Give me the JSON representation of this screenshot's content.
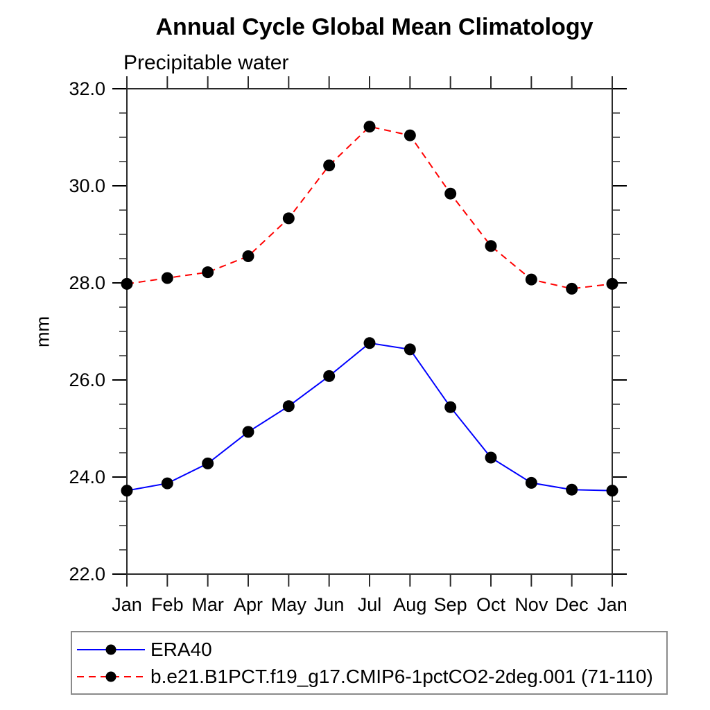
{
  "chart_data": {
    "type": "line",
    "title": "Annual Cycle Global Mean Climatology",
    "subtitle": "Precipitable water",
    "ylabel": "mm",
    "xlabel": "",
    "categories": [
      "Jan",
      "Feb",
      "Mar",
      "Apr",
      "May",
      "Jun",
      "Jul",
      "Aug",
      "Sep",
      "Oct",
      "Nov",
      "Dec",
      "Jan"
    ],
    "series": [
      {
        "name": "ERA40",
        "color": "#0000ff",
        "line_style": "solid",
        "marker": "filled-circle",
        "marker_color": "#000000",
        "values": [
          23.72,
          23.87,
          24.28,
          24.93,
          25.46,
          26.08,
          26.76,
          26.63,
          25.44,
          24.4,
          23.88,
          23.74,
          23.72
        ]
      },
      {
        "name": "b.e21.B1PCT.f19_g17.CMIP6-1pctCO2-2deg.001 (71-110)",
        "color": "#ff0000",
        "line_style": "dashed",
        "marker": "filled-circle",
        "marker_color": "#000000",
        "values": [
          27.98,
          28.1,
          28.22,
          28.55,
          29.33,
          30.42,
          31.22,
          31.04,
          29.84,
          28.76,
          28.07,
          27.88,
          27.98
        ]
      }
    ],
    "ylim": [
      22.0,
      32.0
    ],
    "ytick_values": [
      22,
      24,
      26,
      28,
      30,
      32
    ],
    "ytick_labels": [
      "22.0",
      "24.0",
      "26.0",
      "28.0",
      "30.0",
      "32.0"
    ],
    "ytick_minor_step": 0.5,
    "grid": false,
    "axis_color": "#2a2a2a",
    "text_color": "#000000",
    "legend_position": "bottom"
  }
}
